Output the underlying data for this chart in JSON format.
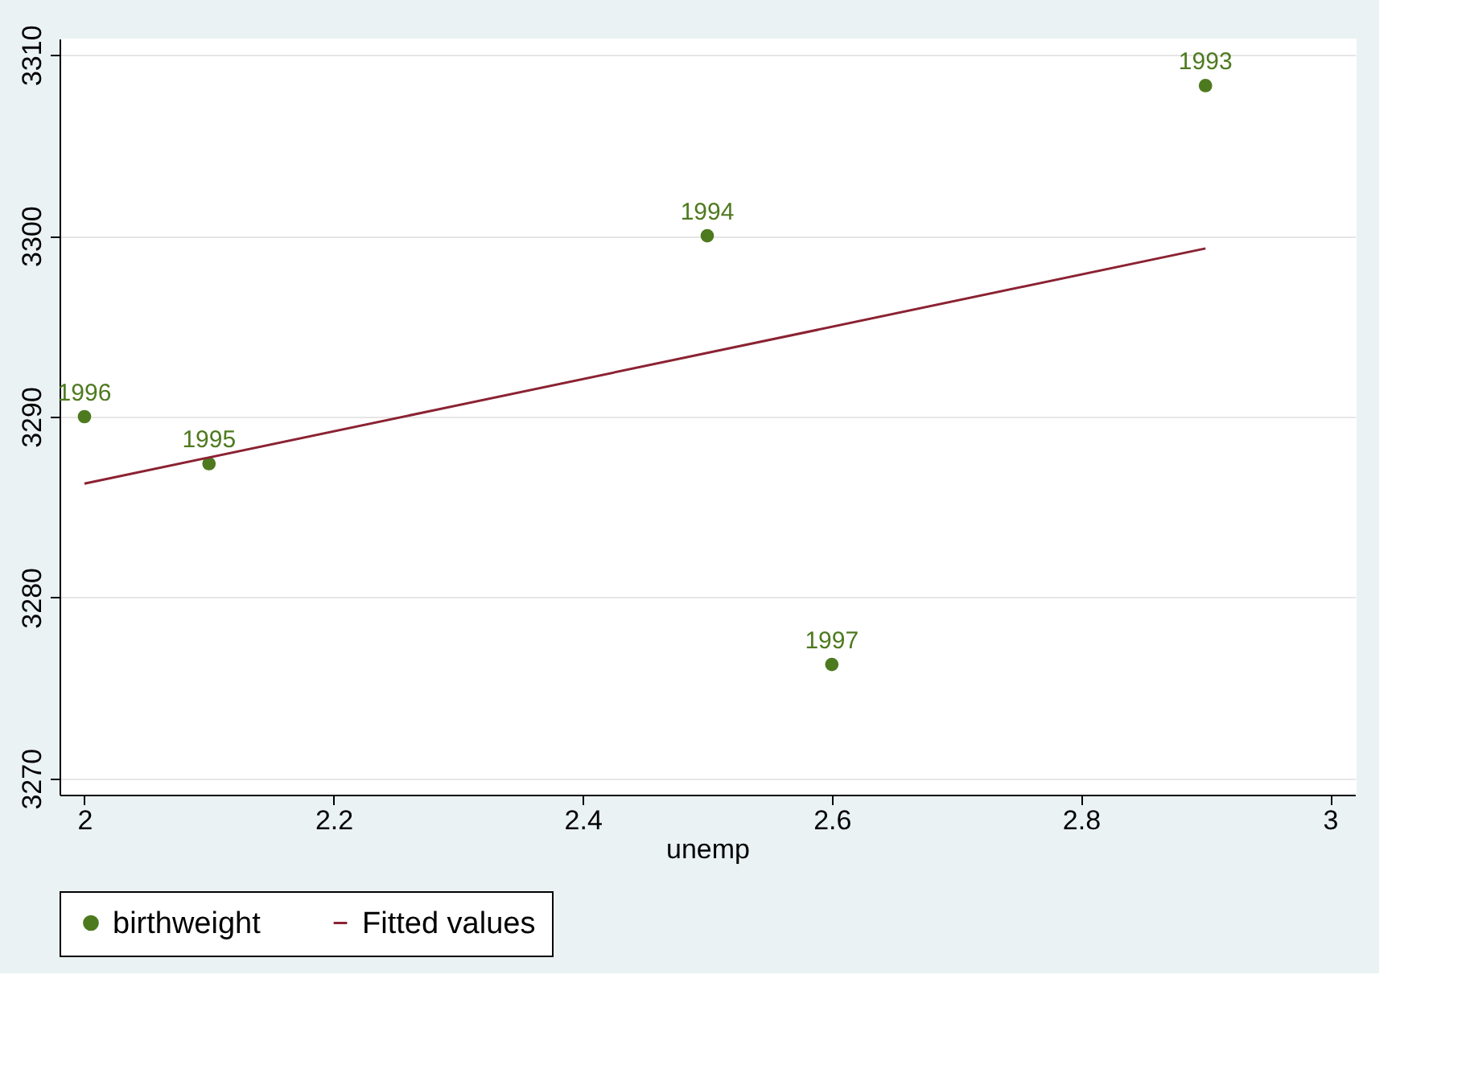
{
  "chart_data": {
    "type": "scatter",
    "xlabel": "unemp",
    "xlim": [
      1.98,
      3.02
    ],
    "xticks": [
      2,
      2.2,
      2.4,
      2.6,
      2.8,
      3
    ],
    "ylim": [
      3269.1,
      3310.9
    ],
    "yticks": [
      3270,
      3280,
      3290,
      3300,
      3310
    ],
    "grid": "y",
    "legend": "bottom",
    "series": [
      {
        "name": "birthweight",
        "marker": "circle",
        "color": "#4e7a1f",
        "x": [
          2.9,
          2.5,
          2.1,
          2.0,
          2.6
        ],
        "values": [
          3308.3,
          3300.0,
          3287.4,
          3290.0,
          3276.3
        ]
      },
      {
        "name": "Fitted values",
        "type": "line",
        "color": "#8b2232",
        "line_style": "solid",
        "x": [
          2.0,
          2.9
        ],
        "values": [
          3286.3,
          3299.3
        ]
      }
    ],
    "annotations": [
      {
        "text": "1993",
        "x": 2.9,
        "y": 3308.3
      },
      {
        "text": "1994",
        "x": 2.5,
        "y": 3300.0
      },
      {
        "text": "1995",
        "x": 2.1,
        "y": 3287.4
      },
      {
        "text": "1996",
        "x": 2.0,
        "y": 3290.0
      },
      {
        "text": "1997",
        "x": 2.6,
        "y": 3276.3
      }
    ]
  }
}
